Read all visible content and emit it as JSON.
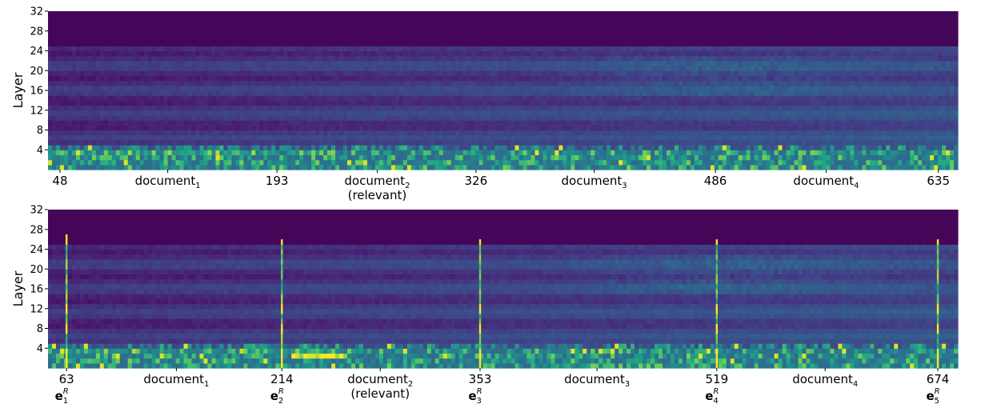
{
  "chart_data": [
    {
      "type": "heatmap",
      "ylabel": "Layer",
      "ylim": [
        0,
        32
      ],
      "yticks": [
        "4",
        "8",
        "12",
        "16",
        "20",
        "24",
        "28",
        "32"
      ],
      "xlim": [
        40,
        648
      ],
      "xticks": [
        {
          "x": 48,
          "label": "48"
        },
        {
          "x": 120,
          "label": "document",
          "sub": "1"
        },
        {
          "x": 193,
          "label": "193"
        },
        {
          "x": 260,
          "label": "document",
          "sub": "2",
          "line2": "(relevant)"
        },
        {
          "x": 326,
          "label": "326"
        },
        {
          "x": 405,
          "label": "document",
          "sub": "3"
        },
        {
          "x": 486,
          "label": "486"
        },
        {
          "x": 560,
          "label": "document",
          "sub": "4"
        },
        {
          "x": 635,
          "label": "635"
        }
      ],
      "relevant_span": [
        193,
        326
      ],
      "spikes": []
    },
    {
      "type": "heatmap",
      "ylabel": "Layer",
      "ylim": [
        0,
        32
      ],
      "yticks": [
        "4",
        "8",
        "12",
        "16",
        "20",
        "24",
        "28",
        "32"
      ],
      "xlim": [
        50,
        688
      ],
      "xticks": [
        {
          "x": 63,
          "label": "63",
          "bold": "e",
          "bsub": "1",
          "bsup": "R"
        },
        {
          "x": 140,
          "label": "document",
          "sub": "1"
        },
        {
          "x": 214,
          "label": "214",
          "bold": "e",
          "bsub": "2",
          "bsup": "R"
        },
        {
          "x": 283,
          "label": "document",
          "sub": "2",
          "line2": "(relevant)"
        },
        {
          "x": 353,
          "label": "353",
          "bold": "e",
          "bsub": "3",
          "bsup": "R"
        },
        {
          "x": 435,
          "label": "document",
          "sub": "3"
        },
        {
          "x": 519,
          "label": "519",
          "bold": "e",
          "bsub": "4",
          "bsup": "R"
        },
        {
          "x": 595,
          "label": "document",
          "sub": "4"
        },
        {
          "x": 674,
          "label": "674",
          "bold": "e",
          "bsub": "5",
          "bsup": "R"
        }
      ],
      "relevant_span": [
        214,
        353
      ],
      "spikes": [
        63,
        214,
        353,
        519,
        674
      ]
    }
  ]
}
